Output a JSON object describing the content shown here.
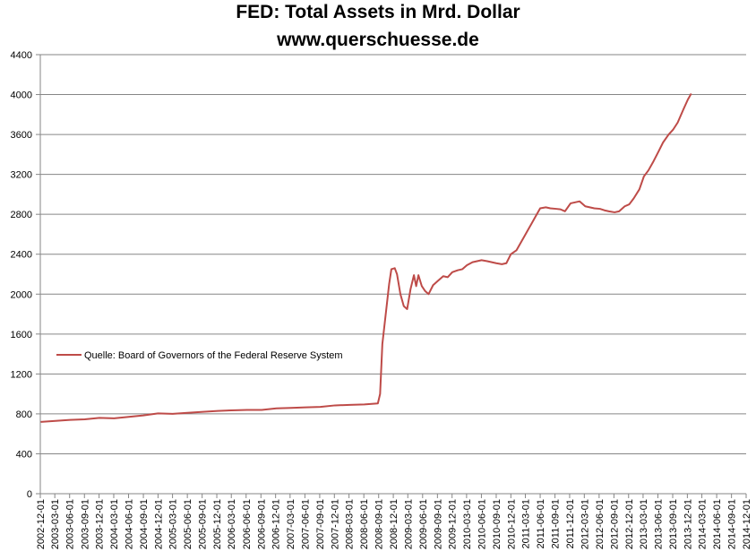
{
  "chart_data": {
    "type": "line",
    "title": "FED: Total Assets in Mrd. Dollar",
    "subtitle": "www.querschuesse.de",
    "xlim": [
      "2002-12-01",
      "2014-12-01"
    ],
    "ylim": [
      0,
      4400
    ],
    "yticks": [
      0,
      400,
      800,
      1200,
      1600,
      2000,
      2400,
      2800,
      3200,
      3600,
      4000,
      4400
    ],
    "xticks": [
      "2002-12-01",
      "2003-03-01",
      "2003-06-01",
      "2003-09-01",
      "2003-12-01",
      "2004-03-01",
      "2004-06-01",
      "2004-09-01",
      "2004-12-01",
      "2005-03-01",
      "2005-06-01",
      "2005-09-01",
      "2005-12-01",
      "2006-03-01",
      "2006-06-01",
      "2006-09-01",
      "2006-12-01",
      "2007-03-01",
      "2007-06-01",
      "2007-09-01",
      "2007-12-01",
      "2008-03-01",
      "2008-06-01",
      "2008-09-01",
      "2008-12-01",
      "2009-03-01",
      "2009-06-01",
      "2009-09-01",
      "2009-12-01",
      "2010-03-01",
      "2010-06-01",
      "2010-09-01",
      "2010-12-01",
      "2011-03-01",
      "2011-06-01",
      "2011-09-01",
      "2011-12-01",
      "2012-03-01",
      "2012-06-01",
      "2012-09-01",
      "2012-12-01",
      "2013-03-01",
      "2013-06-01",
      "2013-09-01",
      "2013-12-01",
      "2014-03-01",
      "2014-06-01",
      "2014-09-01",
      "2014-12-01"
    ],
    "grid": true,
    "legend_position": "center-left",
    "x": [
      "2002-12-04",
      "2003-03-05",
      "2003-06-04",
      "2003-09-03",
      "2003-12-03",
      "2004-03-03",
      "2004-06-02",
      "2004-09-01",
      "2004-12-01",
      "2005-03-02",
      "2005-06-01",
      "2005-09-07",
      "2005-12-07",
      "2006-03-01",
      "2006-06-07",
      "2006-09-06",
      "2006-12-06",
      "2007-03-07",
      "2007-06-06",
      "2007-09-05",
      "2007-12-05",
      "2008-03-05",
      "2008-06-04",
      "2008-08-27",
      "2008-09-10",
      "2008-09-24",
      "2008-10-15",
      "2008-11-05",
      "2008-11-19",
      "2008-12-10",
      "2008-12-24",
      "2009-01-14",
      "2009-02-04",
      "2009-02-25",
      "2009-03-18",
      "2009-04-08",
      "2009-04-22",
      "2009-05-06",
      "2009-05-27",
      "2009-06-17",
      "2009-07-08",
      "2009-08-05",
      "2009-09-02",
      "2009-10-07",
      "2009-11-04",
      "2009-12-02",
      "2010-01-06",
      "2010-02-03",
      "2010-03-03",
      "2010-04-07",
      "2010-05-05",
      "2010-06-02",
      "2010-07-07",
      "2010-08-04",
      "2010-09-01",
      "2010-10-06",
      "2010-11-03",
      "2010-12-01",
      "2011-01-05",
      "2011-02-02",
      "2011-03-02",
      "2011-04-06",
      "2011-05-04",
      "2011-06-01",
      "2011-07-06",
      "2011-08-03",
      "2011-09-07",
      "2011-10-05",
      "2011-11-02",
      "2011-12-07",
      "2012-01-04",
      "2012-02-01",
      "2012-03-07",
      "2012-04-04",
      "2012-05-02",
      "2012-06-06",
      "2012-07-04",
      "2012-08-01",
      "2012-09-05",
      "2012-10-03",
      "2012-11-07",
      "2012-12-05",
      "2013-01-02",
      "2013-02-06",
      "2013-03-06",
      "2013-04-03",
      "2013-05-01",
      "2013-06-05",
      "2013-07-03",
      "2013-08-07",
      "2013-09-04",
      "2013-10-02",
      "2013-11-06",
      "2013-12-04",
      "2013-12-25"
    ],
    "series": [
      {
        "name": "Quelle: Board of Governors of the Federal Reserve System",
        "color": "#be4b48",
        "values": [
          720,
          730,
          740,
          745,
          760,
          755,
          770,
          785,
          805,
          800,
          810,
          820,
          830,
          835,
          840,
          840,
          855,
          860,
          865,
          870,
          885,
          890,
          895,
          905,
          1000,
          1500,
          1800,
          2100,
          2250,
          2260,
          2200,
          2000,
          1880,
          1850,
          2050,
          2190,
          2080,
          2190,
          2080,
          2030,
          2000,
          2090,
          2130,
          2180,
          2170,
          2220,
          2240,
          2250,
          2290,
          2320,
          2330,
          2340,
          2330,
          2320,
          2310,
          2300,
          2310,
          2400,
          2440,
          2520,
          2600,
          2700,
          2780,
          2860,
          2870,
          2860,
          2855,
          2850,
          2830,
          2910,
          2920,
          2930,
          2880,
          2870,
          2860,
          2855,
          2840,
          2830,
          2820,
          2830,
          2880,
          2900,
          2960,
          3050,
          3180,
          3240,
          3320,
          3430,
          3520,
          3600,
          3650,
          3720,
          3850,
          3950,
          4010
        ]
      }
    ]
  }
}
